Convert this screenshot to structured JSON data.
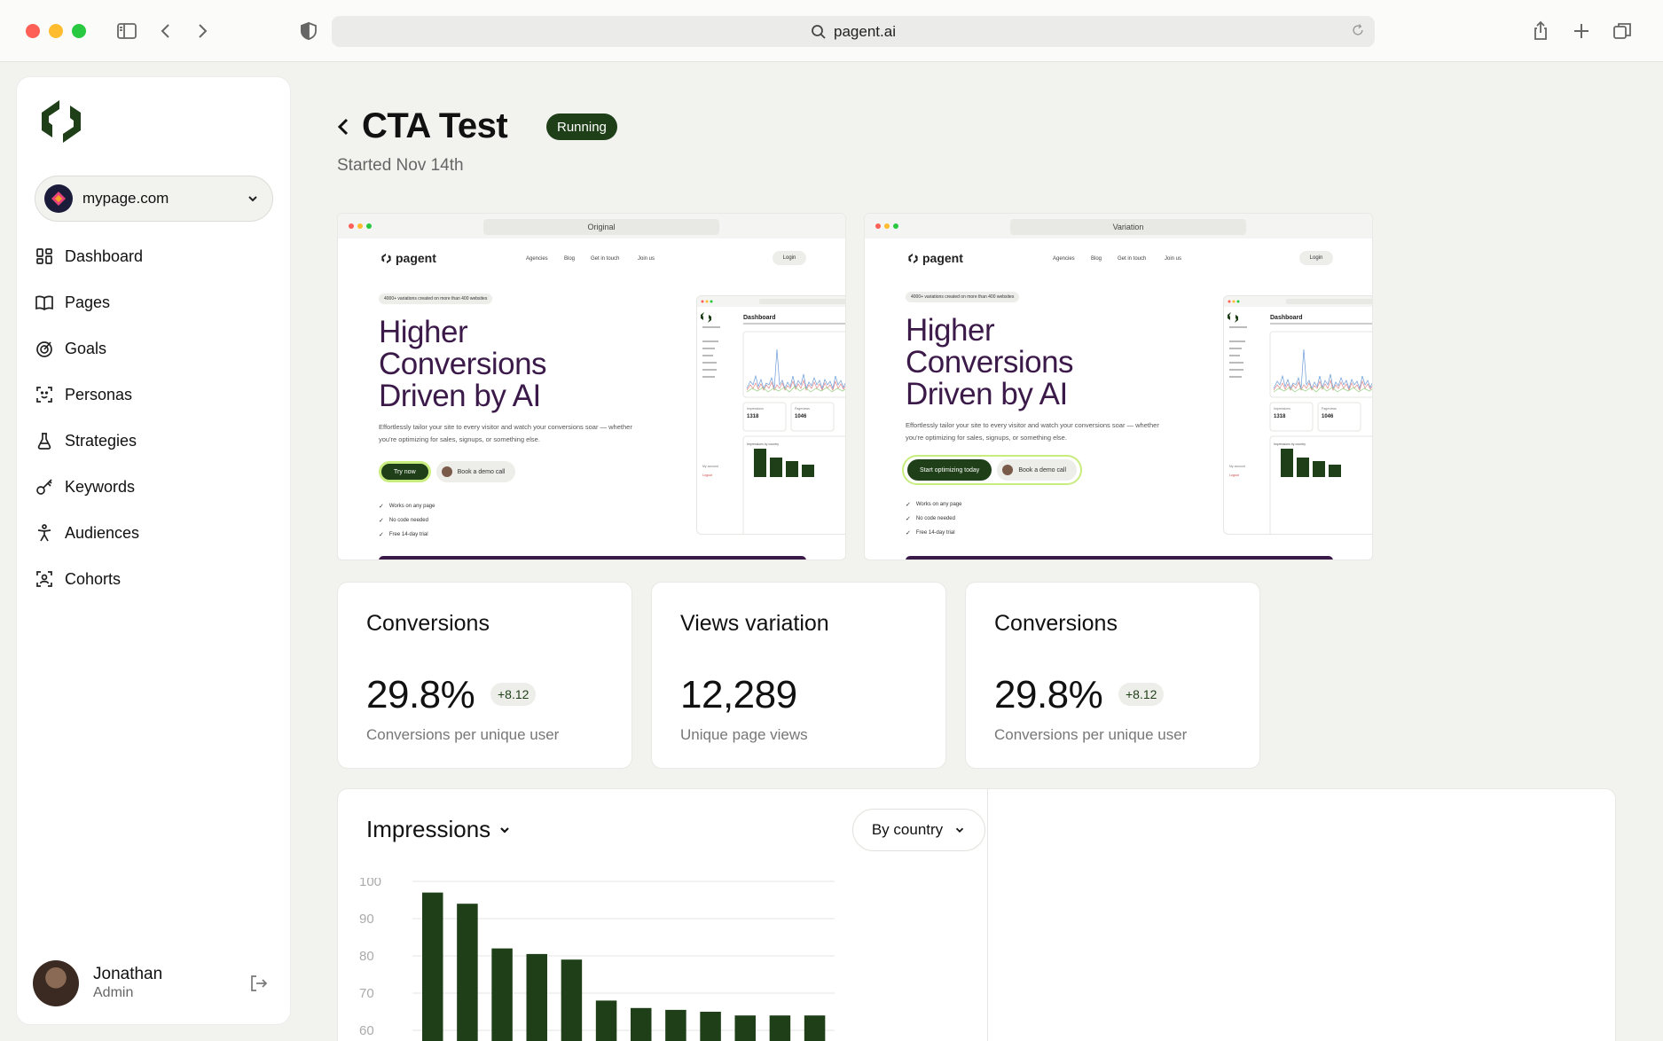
{
  "browser": {
    "url": "pagent.ai"
  },
  "sidebar": {
    "site": "mypage.com",
    "nav": [
      {
        "label": "Dashboard",
        "icon": "dashboard-icon"
      },
      {
        "label": "Pages",
        "icon": "book-icon"
      },
      {
        "label": "Goals",
        "icon": "target-icon"
      },
      {
        "label": "Personas",
        "icon": "face-scan-icon"
      },
      {
        "label": "Strategies",
        "icon": "flask-icon"
      },
      {
        "label": "Keywords",
        "icon": "key-icon"
      },
      {
        "label": "Audiences",
        "icon": "person-icon"
      },
      {
        "label": "Cohorts",
        "icon": "group-scan-icon"
      }
    ],
    "user": {
      "name": "Jonathan",
      "role": "Admin"
    }
  },
  "header": {
    "title": "CTA Test",
    "status": "Running",
    "started": "Started Nov 14th"
  },
  "previews": [
    {
      "tab": "Original",
      "brand": "pagent",
      "nav": [
        "Agencies",
        "Blog",
        "Get in touch",
        "Join us"
      ],
      "login": "Login",
      "pill": "4000+ variations created on more than 400 websites",
      "headline": "Higher Conversions Driven by AI",
      "body": "Effortlessly tailor your site to every visitor and watch your conversions soar — whether you're optimizing for sales, signups, or something else.",
      "cta_primary": "Try now",
      "cta_secondary": "Book a demo call",
      "checks": [
        "Works on any page",
        "No code needed",
        "Free 14-day trial"
      ]
    },
    {
      "tab": "Variation",
      "brand": "pagent",
      "nav": [
        "Agencies",
        "Blog",
        "Get in touch",
        "Join us"
      ],
      "login": "Login",
      "pill": "4000+ variations created on more than 400 websites",
      "headline": "Higher Conversions Driven by AI",
      "body": "Effortlessly tailor your site to every visitor and watch your conversions soar — whether you're optimizing for sales, signups, or something else.",
      "cta_primary": "Start optimizing today",
      "cta_secondary": "Book a demo call",
      "checks": [
        "Works on any page",
        "No code needed",
        "Free 14-day trial"
      ]
    }
  ],
  "mini_dashboard": {
    "title": "Dashboard",
    "stat1_label": "Impressions",
    "stat1_value": "1318",
    "stat2_label": "Pageviews",
    "stat2_value": "1046",
    "section": "Impressions by country",
    "footer": [
      "My account",
      "Logout"
    ]
  },
  "metrics": [
    {
      "title": "Conversions",
      "value": "29.8%",
      "delta": "+8.12",
      "desc": "Conversions per unique user"
    },
    {
      "title": "Views variation",
      "value": "12,289",
      "delta": "",
      "desc": "Unique page views"
    },
    {
      "title": "Conversions",
      "value": "29.8%",
      "delta": "+8.12",
      "desc": "Conversions per unique user"
    }
  ],
  "impressions": {
    "title": "Impressions",
    "filter": "By country"
  },
  "chart_data": {
    "type": "bar",
    "title": "Impressions",
    "yticks": [
      100,
      90,
      80,
      70,
      60
    ],
    "ylim": [
      60,
      100
    ],
    "values": [
      97,
      94,
      82,
      80.5,
      79,
      68,
      66,
      65.5,
      65,
      64,
      64,
      64
    ],
    "bar_color": "#1e3f17",
    "grid": true
  },
  "colors": {
    "accent": "#1e3f17",
    "headline": "#3b1a4a",
    "highlight": "#c8ec7e"
  }
}
